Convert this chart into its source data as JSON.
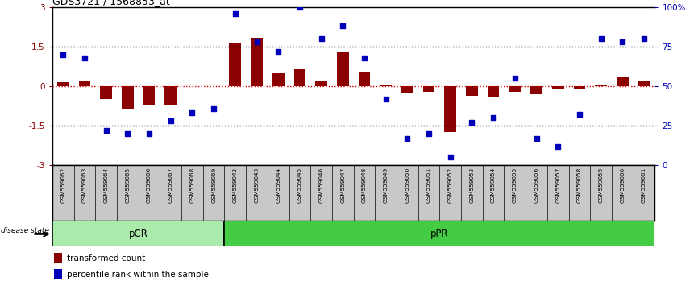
{
  "title": "GDS3721 / 1568853_at",
  "samples": [
    "GSM559062",
    "GSM559063",
    "GSM559064",
    "GSM559065",
    "GSM559066",
    "GSM559067",
    "GSM559068",
    "GSM559069",
    "GSM559042",
    "GSM559043",
    "GSM559044",
    "GSM559045",
    "GSM559046",
    "GSM559047",
    "GSM559048",
    "GSM559049",
    "GSM559050",
    "GSM559051",
    "GSM559052",
    "GSM559053",
    "GSM559054",
    "GSM559055",
    "GSM559056",
    "GSM559057",
    "GSM559058",
    "GSM559059",
    "GSM559060",
    "GSM559061"
  ],
  "bar_values": [
    0.15,
    0.2,
    -0.5,
    -0.85,
    -0.7,
    -0.7,
    0.0,
    0.0,
    1.65,
    1.85,
    0.5,
    0.65,
    0.2,
    1.3,
    0.55,
    0.05,
    -0.25,
    -0.2,
    -1.75,
    -0.35,
    -0.4,
    -0.2,
    -0.3,
    -0.1,
    -0.1,
    0.05,
    0.35,
    0.2
  ],
  "scatter_values": [
    70,
    68,
    22,
    20,
    20,
    28,
    33,
    36,
    96,
    78,
    72,
    100,
    80,
    88,
    68,
    42,
    17,
    20,
    5,
    27,
    30,
    55,
    17,
    12,
    32,
    80,
    78,
    80
  ],
  "pCR_count": 8,
  "pPR_count": 20,
  "bar_color": "#8B0000",
  "scatter_color": "#0000BB",
  "zero_line_color": "#CC0000",
  "pCR_color": "#AAEAAA",
  "pPR_color": "#44CC44",
  "label_bar": "transformed count",
  "label_scatter": "percentile rank within the sample",
  "ylim": [
    -3,
    3
  ],
  "y2lim": [
    0,
    100
  ],
  "y_ticks": [
    -3,
    -1.5,
    0,
    1.5,
    3
  ],
  "y2_ticks": [
    0,
    25,
    50,
    75,
    100
  ],
  "bg_color": "#C8C8C8"
}
